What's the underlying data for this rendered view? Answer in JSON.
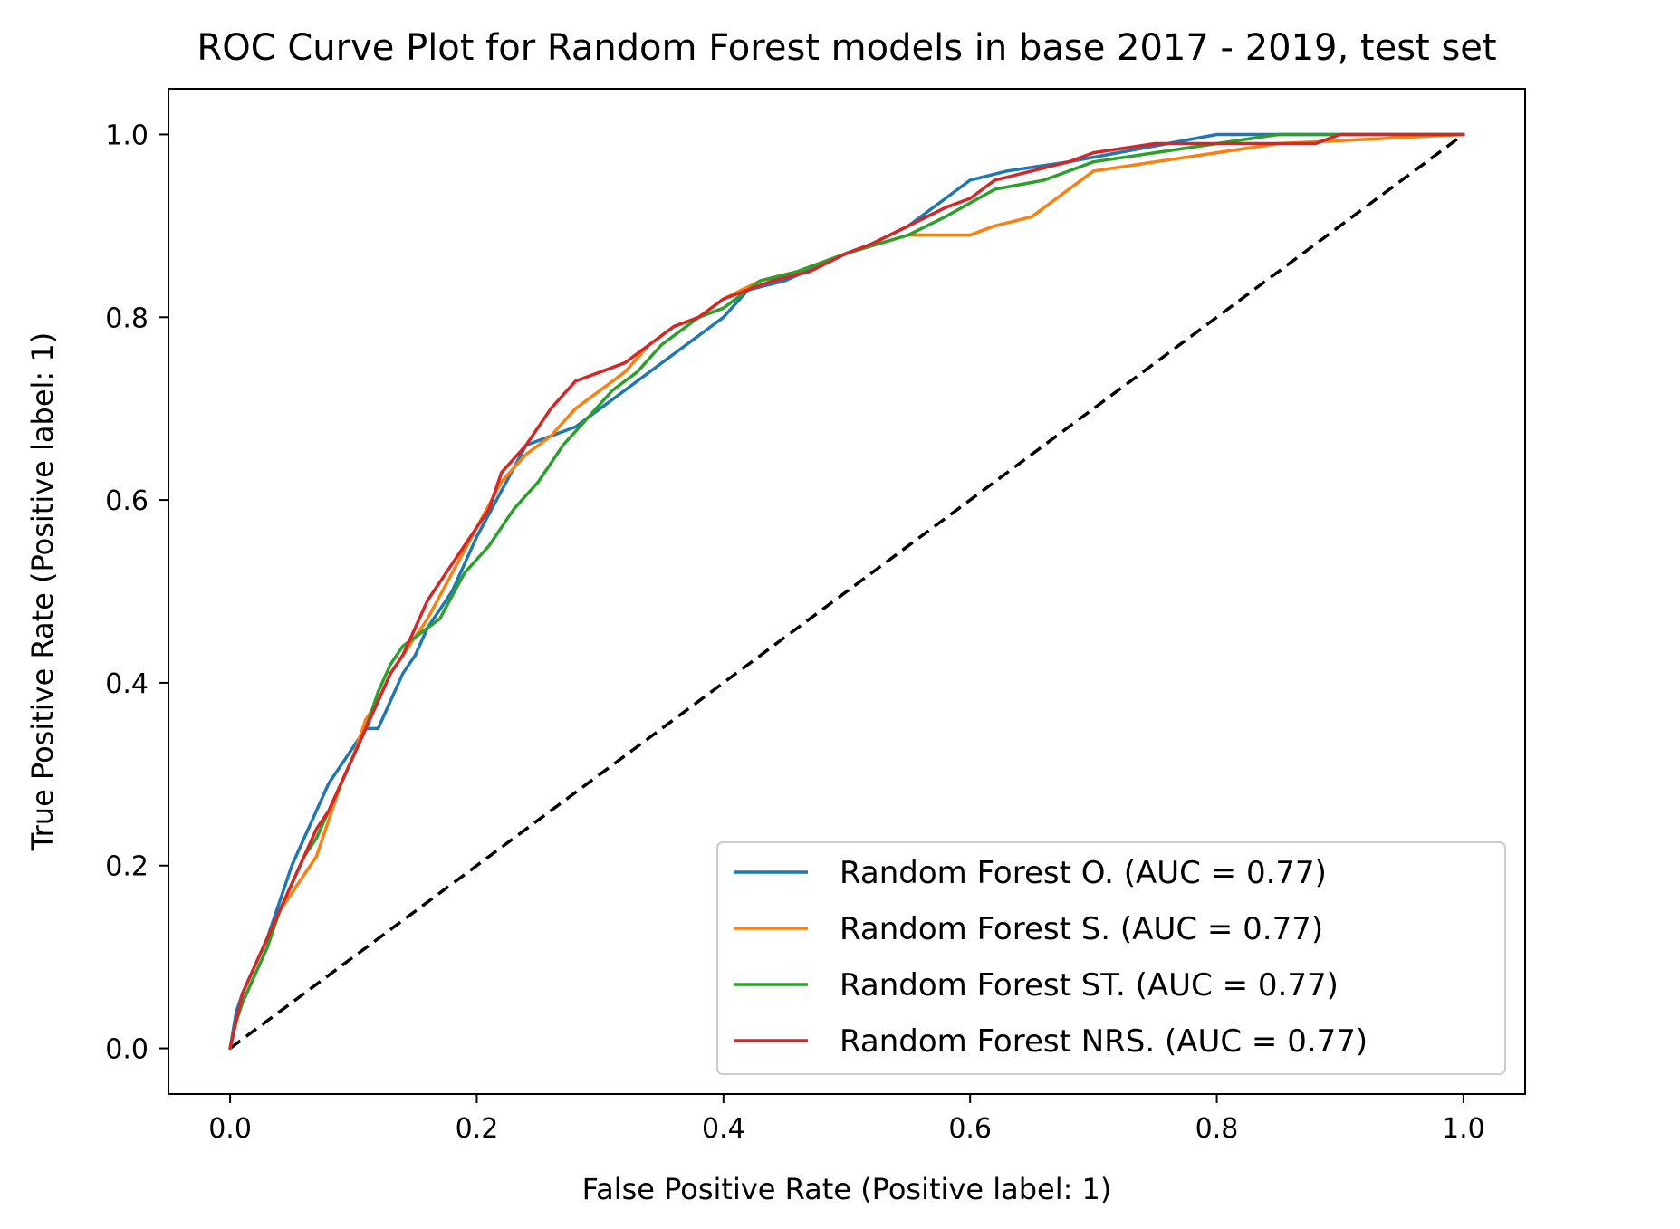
{
  "chart_data": {
    "type": "line",
    "title": "ROC Curve Plot for Random Forest models in base 2017 - 2019, test set",
    "xlabel": "False Positive Rate (Positive label: 1)",
    "ylabel": "True Positive Rate (Positive label: 1)",
    "xlim": [
      -0.05,
      1.05
    ],
    "ylim": [
      -0.05,
      1.05
    ],
    "xticks": [
      "0.0",
      "0.2",
      "0.4",
      "0.6",
      "0.8",
      "1.0"
    ],
    "yticks": [
      "0.0",
      "0.2",
      "0.4",
      "0.6",
      "0.8",
      "1.0"
    ],
    "grid": false,
    "legend_position": "lower-right",
    "series": [
      {
        "name": "Random Forest O. (AUC = 0.77)",
        "color": "#1f77b4",
        "points": [
          [
            0,
            0
          ],
          [
            0.005,
            0.04
          ],
          [
            0.01,
            0.06
          ],
          [
            0.02,
            0.09
          ],
          [
            0.03,
            0.12
          ],
          [
            0.04,
            0.16
          ],
          [
            0.05,
            0.2
          ],
          [
            0.06,
            0.23
          ],
          [
            0.07,
            0.26
          ],
          [
            0.08,
            0.29
          ],
          [
            0.09,
            0.31
          ],
          [
            0.1,
            0.33
          ],
          [
            0.11,
            0.35
          ],
          [
            0.12,
            0.35
          ],
          [
            0.13,
            0.38
          ],
          [
            0.14,
            0.41
          ],
          [
            0.15,
            0.43
          ],
          [
            0.16,
            0.46
          ],
          [
            0.18,
            0.5
          ],
          [
            0.2,
            0.56
          ],
          [
            0.22,
            0.61
          ],
          [
            0.24,
            0.66
          ],
          [
            0.26,
            0.67
          ],
          [
            0.28,
            0.68
          ],
          [
            0.3,
            0.7
          ],
          [
            0.32,
            0.72
          ],
          [
            0.34,
            0.74
          ],
          [
            0.36,
            0.76
          ],
          [
            0.38,
            0.78
          ],
          [
            0.4,
            0.8
          ],
          [
            0.42,
            0.83
          ],
          [
            0.45,
            0.84
          ],
          [
            0.5,
            0.87
          ],
          [
            0.52,
            0.88
          ],
          [
            0.55,
            0.9
          ],
          [
            0.58,
            0.93
          ],
          [
            0.6,
            0.95
          ],
          [
            0.63,
            0.96
          ],
          [
            0.68,
            0.97
          ],
          [
            0.72,
            0.98
          ],
          [
            0.8,
            1.0
          ],
          [
            0.9,
            1.0
          ],
          [
            1.0,
            1.0
          ]
        ]
      },
      {
        "name": "Random Forest S. (AUC = 0.77)",
        "color": "#ff7f0e",
        "points": [
          [
            0,
            0
          ],
          [
            0.005,
            0.03
          ],
          [
            0.01,
            0.05
          ],
          [
            0.02,
            0.08
          ],
          [
            0.03,
            0.11
          ],
          [
            0.04,
            0.15
          ],
          [
            0.05,
            0.17
          ],
          [
            0.06,
            0.19
          ],
          [
            0.07,
            0.21
          ],
          [
            0.08,
            0.25
          ],
          [
            0.09,
            0.29
          ],
          [
            0.1,
            0.32
          ],
          [
            0.11,
            0.36
          ],
          [
            0.12,
            0.38
          ],
          [
            0.13,
            0.41
          ],
          [
            0.14,
            0.43
          ],
          [
            0.16,
            0.47
          ],
          [
            0.18,
            0.52
          ],
          [
            0.2,
            0.57
          ],
          [
            0.22,
            0.62
          ],
          [
            0.24,
            0.65
          ],
          [
            0.26,
            0.67
          ],
          [
            0.28,
            0.7
          ],
          [
            0.3,
            0.72
          ],
          [
            0.32,
            0.74
          ],
          [
            0.34,
            0.77
          ],
          [
            0.36,
            0.79
          ],
          [
            0.38,
            0.8
          ],
          [
            0.4,
            0.82
          ],
          [
            0.43,
            0.84
          ],
          [
            0.46,
            0.85
          ],
          [
            0.5,
            0.87
          ],
          [
            0.55,
            0.89
          ],
          [
            0.6,
            0.89
          ],
          [
            0.62,
            0.9
          ],
          [
            0.65,
            0.91
          ],
          [
            0.67,
            0.93
          ],
          [
            0.7,
            0.96
          ],
          [
            0.75,
            0.97
          ],
          [
            0.8,
            0.98
          ],
          [
            0.85,
            0.99
          ],
          [
            1.0,
            1.0
          ]
        ]
      },
      {
        "name": "Random Forest ST. (AUC = 0.77)",
        "color": "#2ca02c",
        "points": [
          [
            0,
            0
          ],
          [
            0.005,
            0.03
          ],
          [
            0.01,
            0.05
          ],
          [
            0.02,
            0.08
          ],
          [
            0.03,
            0.11
          ],
          [
            0.04,
            0.15
          ],
          [
            0.05,
            0.18
          ],
          [
            0.06,
            0.21
          ],
          [
            0.07,
            0.23
          ],
          [
            0.08,
            0.26
          ],
          [
            0.09,
            0.29
          ],
          [
            0.1,
            0.32
          ],
          [
            0.11,
            0.35
          ],
          [
            0.12,
            0.39
          ],
          [
            0.13,
            0.42
          ],
          [
            0.14,
            0.44
          ],
          [
            0.15,
            0.45
          ],
          [
            0.17,
            0.47
          ],
          [
            0.19,
            0.52
          ],
          [
            0.21,
            0.55
          ],
          [
            0.23,
            0.59
          ],
          [
            0.25,
            0.62
          ],
          [
            0.27,
            0.66
          ],
          [
            0.29,
            0.69
          ],
          [
            0.31,
            0.72
          ],
          [
            0.33,
            0.74
          ],
          [
            0.35,
            0.77
          ],
          [
            0.38,
            0.8
          ],
          [
            0.4,
            0.81
          ],
          [
            0.43,
            0.84
          ],
          [
            0.46,
            0.85
          ],
          [
            0.5,
            0.87
          ],
          [
            0.55,
            0.89
          ],
          [
            0.58,
            0.91
          ],
          [
            0.62,
            0.94
          ],
          [
            0.66,
            0.95
          ],
          [
            0.7,
            0.97
          ],
          [
            0.75,
            0.98
          ],
          [
            0.8,
            0.99
          ],
          [
            0.85,
            1.0
          ],
          [
            1.0,
            1.0
          ]
        ]
      },
      {
        "name": "Random Forest NRS. (AUC = 0.77)",
        "color": "#d62728",
        "points": [
          [
            0,
            0
          ],
          [
            0.005,
            0.03
          ],
          [
            0.01,
            0.06
          ],
          [
            0.02,
            0.09
          ],
          [
            0.03,
            0.12
          ],
          [
            0.04,
            0.15
          ],
          [
            0.05,
            0.18
          ],
          [
            0.06,
            0.21
          ],
          [
            0.07,
            0.24
          ],
          [
            0.08,
            0.26
          ],
          [
            0.09,
            0.29
          ],
          [
            0.1,
            0.32
          ],
          [
            0.11,
            0.35
          ],
          [
            0.12,
            0.38
          ],
          [
            0.13,
            0.41
          ],
          [
            0.14,
            0.43
          ],
          [
            0.15,
            0.46
          ],
          [
            0.16,
            0.49
          ],
          [
            0.17,
            0.51
          ],
          [
            0.19,
            0.55
          ],
          [
            0.21,
            0.59
          ],
          [
            0.22,
            0.63
          ],
          [
            0.24,
            0.66
          ],
          [
            0.26,
            0.7
          ],
          [
            0.28,
            0.73
          ],
          [
            0.3,
            0.74
          ],
          [
            0.32,
            0.75
          ],
          [
            0.34,
            0.77
          ],
          [
            0.36,
            0.79
          ],
          [
            0.38,
            0.8
          ],
          [
            0.4,
            0.82
          ],
          [
            0.42,
            0.83
          ],
          [
            0.44,
            0.84
          ],
          [
            0.47,
            0.85
          ],
          [
            0.5,
            0.87
          ],
          [
            0.52,
            0.88
          ],
          [
            0.55,
            0.9
          ],
          [
            0.58,
            0.92
          ],
          [
            0.6,
            0.93
          ],
          [
            0.62,
            0.95
          ],
          [
            0.65,
            0.96
          ],
          [
            0.68,
            0.97
          ],
          [
            0.7,
            0.98
          ],
          [
            0.75,
            0.99
          ],
          [
            0.8,
            0.99
          ],
          [
            0.88,
            0.99
          ],
          [
            0.9,
            1.0
          ],
          [
            1.0,
            1.0
          ]
        ]
      }
    ],
    "reference_line": {
      "style": "dashed",
      "color": "#000000",
      "points": [
        [
          0,
          0
        ],
        [
          1,
          1
        ]
      ]
    }
  }
}
